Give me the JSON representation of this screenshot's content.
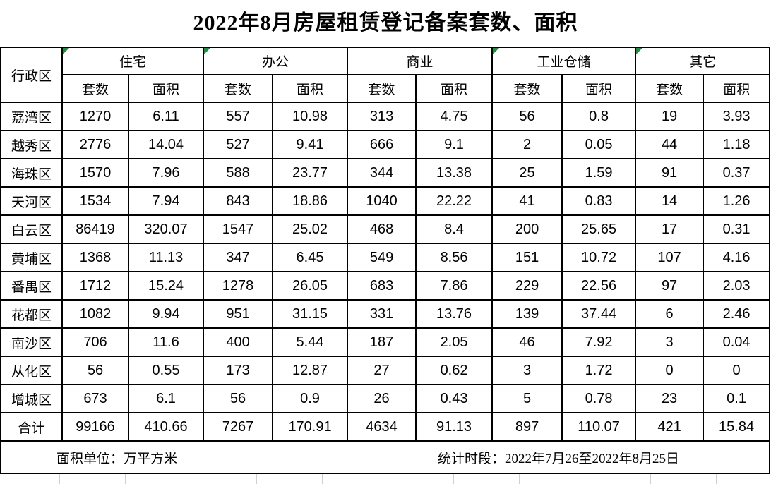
{
  "title": "2022年8月房屋租赁登记备案套数、面积",
  "table": {
    "corner_header": "行政区",
    "groups": [
      {
        "label": "住宅",
        "has_flag": true
      },
      {
        "label": "办公",
        "has_flag": true
      },
      {
        "label": "商业",
        "has_flag": false
      },
      {
        "label": "工业仓储",
        "has_flag": true
      },
      {
        "label": "其它",
        "has_flag": true
      }
    ],
    "sub_headers": [
      "套数",
      "面积"
    ],
    "rows": [
      {
        "district": "荔湾区",
        "values": [
          "1270",
          "6.11",
          "557",
          "10.98",
          "313",
          "4.75",
          "56",
          "0.8",
          "19",
          "3.93"
        ]
      },
      {
        "district": "越秀区",
        "values": [
          "2776",
          "14.04",
          "527",
          "9.41",
          "666",
          "9.1",
          "2",
          "0.05",
          "44",
          "1.18"
        ]
      },
      {
        "district": "海珠区",
        "values": [
          "1570",
          "7.96",
          "588",
          "23.77",
          "344",
          "13.38",
          "25",
          "1.59",
          "91",
          "0.37"
        ]
      },
      {
        "district": "天河区",
        "values": [
          "1534",
          "7.94",
          "843",
          "18.86",
          "1040",
          "22.22",
          "41",
          "0.83",
          "14",
          "1.26"
        ]
      },
      {
        "district": "白云区",
        "values": [
          "86419",
          "320.07",
          "1547",
          "25.02",
          "468",
          "8.4",
          "200",
          "25.65",
          "17",
          "0.31"
        ]
      },
      {
        "district": "黄埔区",
        "values": [
          "1368",
          "11.13",
          "347",
          "6.45",
          "549",
          "8.56",
          "151",
          "10.72",
          "107",
          "4.16"
        ]
      },
      {
        "district": "番禺区",
        "values": [
          "1712",
          "15.24",
          "1278",
          "26.05",
          "683",
          "7.86",
          "229",
          "22.56",
          "97",
          "2.03"
        ]
      },
      {
        "district": "花都区",
        "values": [
          "1082",
          "9.94",
          "951",
          "31.15",
          "331",
          "13.76",
          "139",
          "37.44",
          "6",
          "2.46"
        ]
      },
      {
        "district": "南沙区",
        "values": [
          "706",
          "11.6",
          "400",
          "5.44",
          "187",
          "2.05",
          "46",
          "7.92",
          "3",
          "0.04"
        ]
      },
      {
        "district": "从化区",
        "values": [
          "56",
          "0.55",
          "173",
          "12.87",
          "27",
          "0.62",
          "3",
          "1.72",
          "0",
          "0"
        ]
      },
      {
        "district": "增城区",
        "values": [
          "673",
          "6.1",
          "56",
          "0.9",
          "26",
          "0.43",
          "5",
          "0.78",
          "23",
          "0.1"
        ]
      }
    ],
    "total_row": {
      "district": "合计",
      "values": [
        "99166",
        "410.66",
        "7267",
        "170.91",
        "4634",
        "91.13",
        "897",
        "110.07",
        "421",
        "15.84"
      ]
    }
  },
  "footer": {
    "unit_note": "面积单位：万平方米",
    "period_note": "统计时段：2022年7月26至2022年8月25日"
  },
  "colors": {
    "flag_green": "#1e8e3e",
    "border": "#000000",
    "text": "#000000",
    "background": "#ffffff"
  }
}
